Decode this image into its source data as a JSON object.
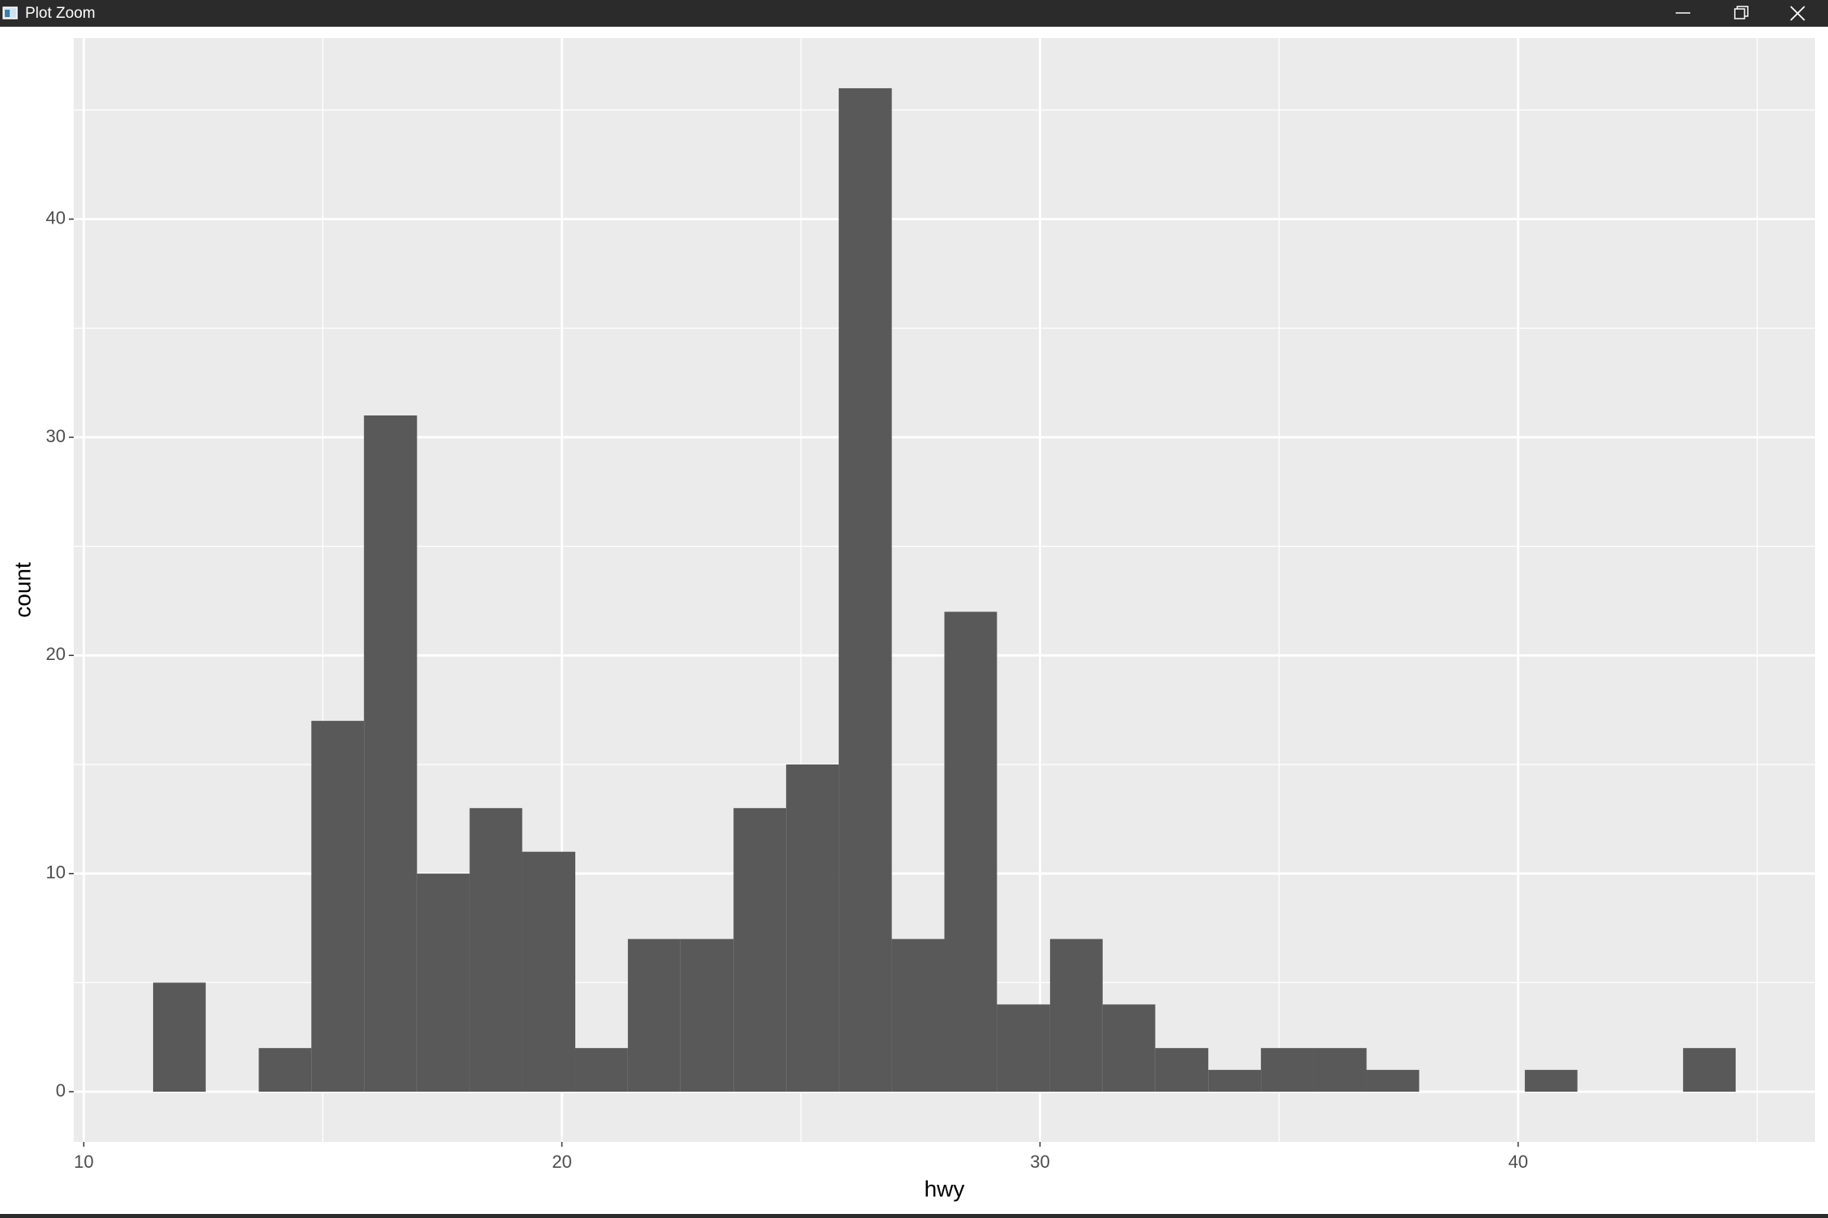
{
  "window": {
    "title": "Plot Zoom"
  },
  "chart_data": {
    "type": "histogram",
    "x_label": "hwy",
    "y_label": "count",
    "bins": [
      11.45,
      12.55,
      13.66,
      14.76,
      15.86,
      16.97,
      18.07,
      19.17,
      20.28,
      21.38,
      22.48,
      23.59,
      24.69,
      25.79,
      26.9,
      28.0,
      29.1,
      30.21,
      31.31,
      32.41,
      33.52,
      34.62,
      35.72,
      36.83,
      37.93,
      39.03,
      40.14,
      41.24,
      42.34,
      43.45,
      44.55
    ],
    "values": [
      5,
      0,
      2,
      17,
      31,
      10,
      13,
      11,
      2,
      7,
      7,
      13,
      15,
      46,
      7,
      22,
      4,
      7,
      4,
      2,
      1,
      2,
      2,
      1,
      0,
      0,
      1,
      0,
      0,
      2
    ],
    "color": "#595959",
    "xlim": [
      9.79,
      46.21
    ],
    "xticks": [
      10,
      20,
      30,
      40
    ],
    "ylim": [
      -2.3,
      48.3
    ],
    "yticks": [
      0,
      10,
      20,
      30,
      40
    ],
    "grid": true
  }
}
